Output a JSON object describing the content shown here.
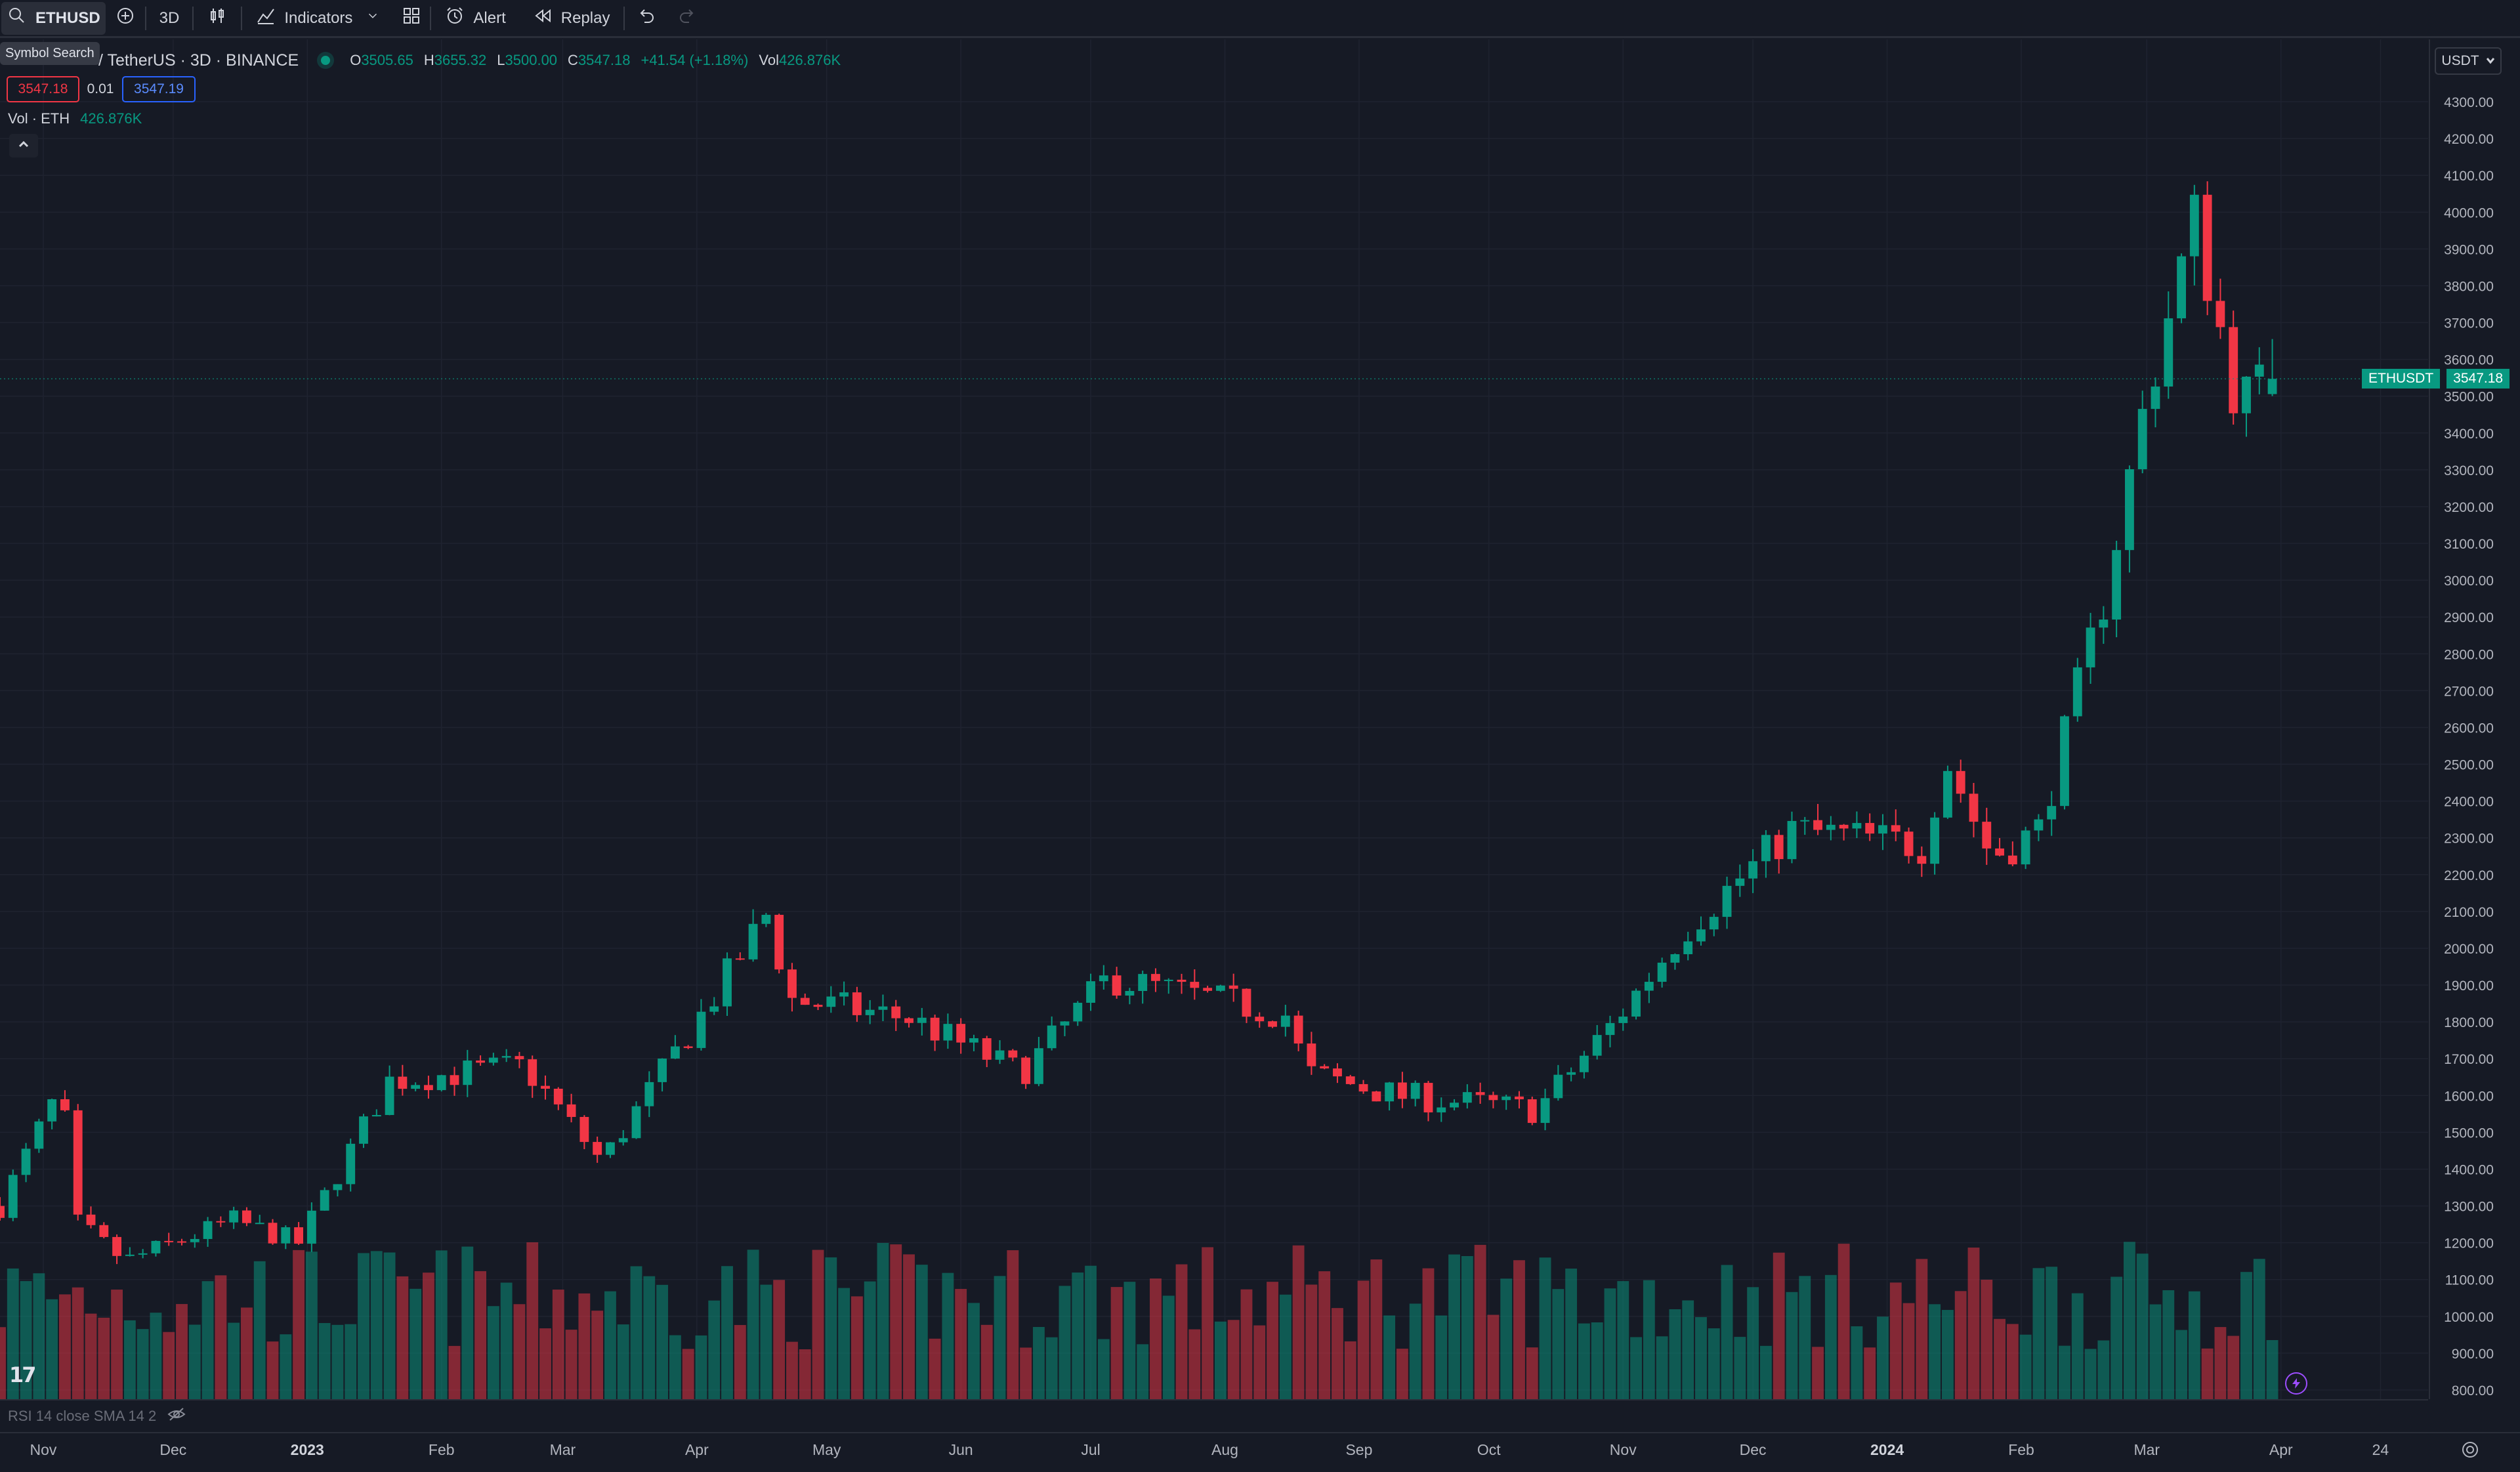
{
  "toolbar": {
    "symbol": "ETHUSD",
    "interval": "3D",
    "indicators_label": "Indicators",
    "alert_label": "Alert",
    "replay_label": "Replay"
  },
  "tooltip": "Symbol Search",
  "legend": {
    "title": "/ TetherUS · 3D · BINANCE",
    "open_key": "O",
    "open": "3505.65",
    "high_key": "H",
    "high": "3655.32",
    "low_key": "L",
    "low": "3500.00",
    "close_key": "C",
    "close": "3547.18",
    "change": "+41.54 (+1.18%)",
    "vol_key": "Vol",
    "vol": "426.876K"
  },
  "trade": {
    "sell": "3547.18",
    "spread": "0.01",
    "buy": "3547.19"
  },
  "volume_legend": {
    "label": "Vol · ETH",
    "value": "426.876K"
  },
  "currency": "USDT",
  "last_price": {
    "symbol": "ETHUSDT",
    "value": "3547.18"
  },
  "rsi_label": "RSI 14 close SMA 14 2",
  "colors": {
    "up": "#089981",
    "down": "#f23645",
    "bg": "#161a25",
    "grid": "#1f2330"
  },
  "price_axis": [
    "4300.00",
    "4200.00",
    "4100.00",
    "4000.00",
    "3900.00",
    "3800.00",
    "3700.00",
    "3600.00",
    "3500.00",
    "3400.00",
    "3300.00",
    "3200.00",
    "3100.00",
    "3000.00",
    "2900.00",
    "2800.00",
    "2700.00",
    "2600.00",
    "2500.00",
    "2400.00",
    "2300.00",
    "2200.00",
    "2100.00",
    "2000.00",
    "1900.00",
    "1800.00",
    "1700.00",
    "1600.00",
    "1500.00",
    "1400.00",
    "1300.00",
    "1200.00",
    "1100.00",
    "1000.00",
    "900.00",
    "800.00"
  ],
  "time_axis": [
    {
      "label": "Nov",
      "date": "2022-11-01",
      "bold": false
    },
    {
      "label": "Dec",
      "date": "2022-12-01",
      "bold": false
    },
    {
      "label": "2023",
      "date": "2023-01-01",
      "bold": true
    },
    {
      "label": "Feb",
      "date": "2023-02-01",
      "bold": false
    },
    {
      "label": "Mar",
      "date": "2023-03-01",
      "bold": false
    },
    {
      "label": "Apr",
      "date": "2023-04-01",
      "bold": false
    },
    {
      "label": "May",
      "date": "2023-05-01",
      "bold": false
    },
    {
      "label": "Jun",
      "date": "2023-06-01",
      "bold": false
    },
    {
      "label": "Jul",
      "date": "2023-07-01",
      "bold": false
    },
    {
      "label": "Aug",
      "date": "2023-08-01",
      "bold": false
    },
    {
      "label": "Sep",
      "date": "2023-09-01",
      "bold": false
    },
    {
      "label": "Oct",
      "date": "2023-10-01",
      "bold": false
    },
    {
      "label": "Nov",
      "date": "2023-11-01",
      "bold": false
    },
    {
      "label": "Dec",
      "date": "2023-12-01",
      "bold": false
    },
    {
      "label": "2024",
      "date": "2024-01-01",
      "bold": true
    },
    {
      "label": "Feb",
      "date": "2024-02-01",
      "bold": false
    },
    {
      "label": "Mar",
      "date": "2024-03-01",
      "bold": false
    },
    {
      "label": "Apr",
      "date": "2024-04-01",
      "bold": false
    },
    {
      "label": "24",
      "date": "2024-04-24",
      "bold": false
    }
  ],
  "chart_data": {
    "type": "candlestick",
    "interval": "3D",
    "x_range": [
      "2022-10-22",
      "2024-05-05"
    ],
    "ylim": [
      800,
      4350
    ],
    "grid": true,
    "anchors": [
      {
        "date": "2022-10-22",
        "close": 1300
      },
      {
        "date": "2022-11-05",
        "close": 1620
      },
      {
        "date": "2022-11-09",
        "close": 1250
      },
      {
        "date": "2022-11-20",
        "close": 1150
      },
      {
        "date": "2022-12-15",
        "close": 1260
      },
      {
        "date": "2022-12-30",
        "close": 1200
      },
      {
        "date": "2023-01-20",
        "close": 1640
      },
      {
        "date": "2023-02-20",
        "close": 1680
      },
      {
        "date": "2023-03-10",
        "close": 1420
      },
      {
        "date": "2023-04-05",
        "close": 1870
      },
      {
        "date": "2023-04-17",
        "close": 2090
      },
      {
        "date": "2023-04-23",
        "close": 1860
      },
      {
        "date": "2023-05-20",
        "close": 1810
      },
      {
        "date": "2023-06-15",
        "close": 1660
      },
      {
        "date": "2023-07-05",
        "close": 1920
      },
      {
        "date": "2023-08-15",
        "close": 1820
      },
      {
        "date": "2023-08-20",
        "close": 1660
      },
      {
        "date": "2023-09-10",
        "close": 1600
      },
      {
        "date": "2023-10-12",
        "close": 1560
      },
      {
        "date": "2023-10-30",
        "close": 1800
      },
      {
        "date": "2023-11-15",
        "close": 2050
      },
      {
        "date": "2023-12-10",
        "close": 2320
      },
      {
        "date": "2024-01-10",
        "close": 2280
      },
      {
        "date": "2024-01-14",
        "close": 2530
      },
      {
        "date": "2024-01-25",
        "close": 2250
      },
      {
        "date": "2024-02-05",
        "close": 2320
      },
      {
        "date": "2024-02-20",
        "close": 2950
      },
      {
        "date": "2024-03-01",
        "close": 3500
      },
      {
        "date": "2024-03-12",
        "close": 3980
      },
      {
        "date": "2024-03-22",
        "close": 3480
      },
      {
        "date": "2024-03-31",
        "close": 3547
      }
    ],
    "volume_range_note": "volume bars under price, colored by candle direction",
    "last": {
      "open": 3505.65,
      "high": 3655.32,
      "low": 3500.0,
      "close": 3547.18,
      "volume": "426.876K"
    }
  }
}
